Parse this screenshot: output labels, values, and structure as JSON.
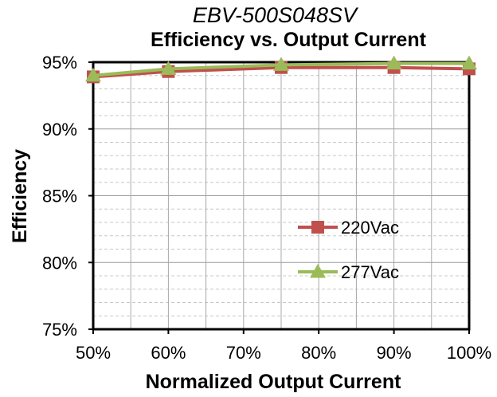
{
  "chart_data": {
    "type": "line",
    "title": "EBV-500S048SV",
    "subtitle": "Efficiency vs. Output Current",
    "xlabel": "Normalized Output Current",
    "ylabel": "Efficiency",
    "x": [
      "50%",
      "60%",
      "70%",
      "80%",
      "90%",
      "100%"
    ],
    "x_values": [
      50,
      60,
      70,
      80,
      90,
      100
    ],
    "y_ticks": [
      "75%",
      "80%",
      "85%",
      "90%",
      "95%"
    ],
    "y_tick_values": [
      75,
      80,
      85,
      90,
      95
    ],
    "xlim": [
      50,
      100
    ],
    "ylim": [
      75,
      95
    ],
    "grid": true,
    "legend_position": "center-right",
    "series": [
      {
        "name": "220Vac",
        "color": "#c0504d",
        "marker": "square",
        "x": [
          50,
          60,
          75,
          90,
          100
        ],
        "values": [
          93.9,
          94.3,
          94.6,
          94.6,
          94.5
        ]
      },
      {
        "name": "277Vac",
        "color": "#9bbb59",
        "marker": "triangle",
        "x": [
          50,
          60,
          75,
          90,
          100
        ],
        "values": [
          94.0,
          94.5,
          94.8,
          94.9,
          94.9
        ]
      }
    ]
  }
}
